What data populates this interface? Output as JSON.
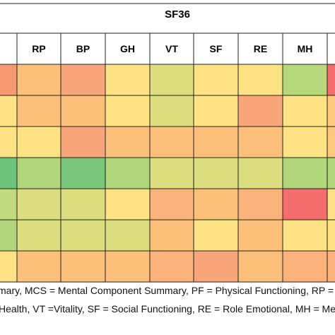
{
  "chart_data": {
    "type": "heatmap",
    "title": "SF36",
    "columns": [
      "",
      "RP",
      "BP",
      "GH",
      "VT",
      "SF",
      "RE",
      "MH",
      ""
    ],
    "rows": 7,
    "cells": [
      [
        "#f79a72",
        "#fdc07b",
        "#f9a57a",
        "#fde284",
        "#ddde7e",
        "#fde284",
        "#fde284",
        "#b6d77a",
        "#f46d6d"
      ],
      [
        "#fee283",
        "#fdc07b",
        "#fdc07b",
        "#fee283",
        "#dbdd7f",
        "#fee283",
        "#f9a57a",
        "#fee283",
        "#fec97b"
      ],
      [
        "#fee283",
        "#fee283",
        "#f9a57a",
        "#fdc07b",
        "#fdc07b",
        "#fdc07b",
        "#fdc07b",
        "#fee283",
        "#fec97b"
      ],
      [
        "#6cc57a",
        "#b0d57b",
        "#7ac77c",
        "#b0d57b",
        "#dbdd7f",
        "#dbdd7f",
        "#dbdd7f",
        "#b0d57b",
        "#b0d57b"
      ],
      [
        "#c1da7e",
        "#dbdd7f",
        "#dbdd7f",
        "#fee283",
        "#fcb37b",
        "#fdc07b",
        "#fcb37b",
        "#f46d6d",
        "#fee283"
      ],
      [
        "#b0d57b",
        "#dbdd7f",
        "#dbdd7f",
        "#dbdd7f",
        "#fdc07b",
        "#fee283",
        "#fdc07b",
        "#fee283",
        "#fee283"
      ],
      [
        "#fee283",
        "#fdc07b",
        "#fdc07b",
        "#fdc07b",
        "#fcb37b",
        "#f9a57a",
        "#fdc07b",
        "#fcb37b",
        "#fcb37b"
      ]
    ]
  },
  "footnotes": {
    "line1": "mary, MCS = Mental Component Summary, PF = Physical Functioning, RP =",
    "line2": "Health, VT =Vitality, SF = Social Functioning, RE = Role Emotional, MH = Me"
  }
}
